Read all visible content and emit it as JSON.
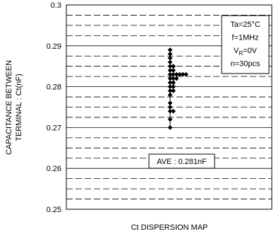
{
  "chart_data": {
    "type": "scatter",
    "ylabel_line1": "CAPACITANCE BETWEEN",
    "ylabel_line2": "TERMINAL : Ct(nF)",
    "xlabel": "Ct DISPERSION MAP",
    "ylim": [
      0.25,
      0.3
    ],
    "yticks": [
      "0.25",
      "0.26",
      "0.27",
      "0.28",
      "0.29",
      "0.3"
    ],
    "grid": "dashed-horizontal",
    "conditions": [
      "Ta=25°C",
      "f=1MHz",
      "VR=0V",
      "n=30pcs"
    ],
    "average_label": "AVE : 0.281nF",
    "points": [
      {
        "col": 0,
        "y": 0.289
      },
      {
        "col": 0,
        "y": 0.288
      },
      {
        "col": 0,
        "y": 0.287
      },
      {
        "col": 0,
        "y": 0.286
      },
      {
        "col": 0,
        "y": 0.285
      },
      {
        "col": 1,
        "y": 0.285
      },
      {
        "col": 0,
        "y": 0.284
      },
      {
        "col": 1,
        "y": 0.284
      },
      {
        "col": 0,
        "y": 0.283
      },
      {
        "col": 1,
        "y": 0.283
      },
      {
        "col": 2,
        "y": 0.283
      },
      {
        "col": 3,
        "y": 0.283
      },
      {
        "col": 4,
        "y": 0.283
      },
      {
        "col": 5,
        "y": 0.283
      },
      {
        "col": 0,
        "y": 0.282
      },
      {
        "col": 1,
        "y": 0.282
      },
      {
        "col": 2,
        "y": 0.282
      },
      {
        "col": 0,
        "y": 0.281
      },
      {
        "col": 1,
        "y": 0.281
      },
      {
        "col": 0,
        "y": 0.28
      },
      {
        "col": 1,
        "y": 0.28
      },
      {
        "col": 0,
        "y": 0.279
      },
      {
        "col": 1,
        "y": 0.279
      },
      {
        "col": 0,
        "y": 0.278
      },
      {
        "col": 0,
        "y": 0.276
      },
      {
        "col": 0,
        "y": 0.275
      },
      {
        "col": 0,
        "y": 0.274
      },
      {
        "col": 1,
        "y": 0.274
      },
      {
        "col": 0,
        "y": 0.272
      },
      {
        "col": 0,
        "y": 0.27
      }
    ]
  }
}
